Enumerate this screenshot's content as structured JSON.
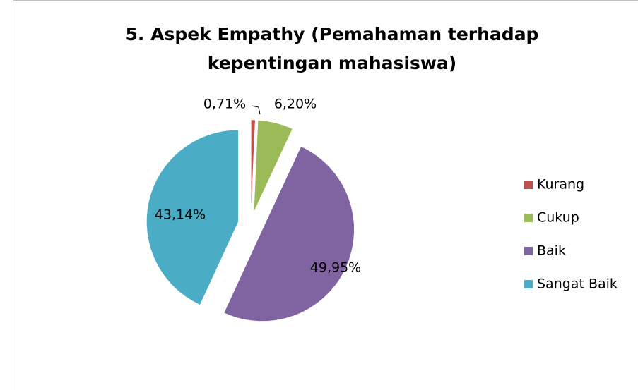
{
  "chart_data": {
    "type": "pie",
    "title": "5. Aspek Empathy (Pemahaman terhadap kepentingan mahasiswa)",
    "categories": [
      "Kurang",
      "Cukup",
      "Baik",
      "Sangat Baik"
    ],
    "values": [
      0.71,
      6.2,
      49.95,
      43.14
    ],
    "value_labels": [
      "0,71%",
      "6,20%",
      "49,95%",
      "43,14%"
    ],
    "colors": [
      "#c0504d",
      "#9bbb59",
      "#8064a2",
      "#4bacc6"
    ],
    "legend": "right"
  }
}
